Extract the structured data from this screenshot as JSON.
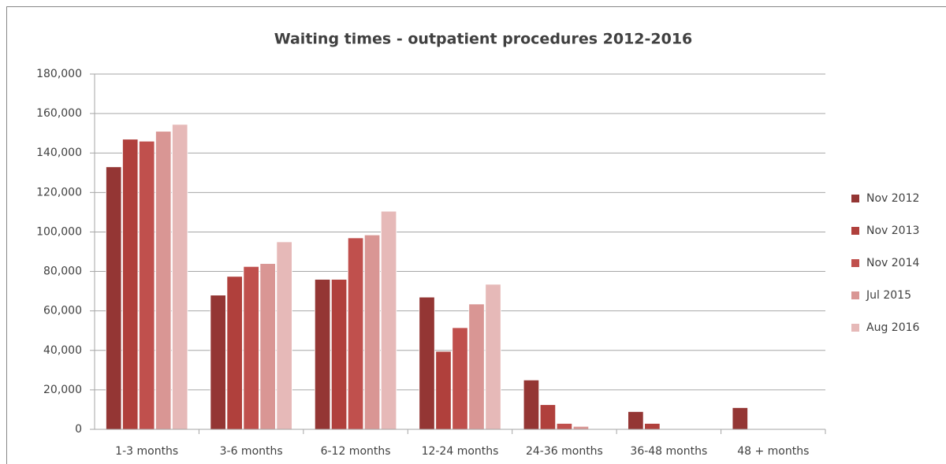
{
  "chart_data": {
    "type": "bar",
    "title": "Waiting times - outpatient procedures 2012-2016",
    "categories": [
      "1-3 months",
      "3-6 months",
      "6-12 months",
      "12-24 months",
      "24-36 months",
      "36-48 months",
      "48 + months"
    ],
    "series": [
      {
        "name": "Nov 2012",
        "color": "#943634",
        "values": [
          133000,
          68000,
          76000,
          67000,
          25000,
          9000,
          11000
        ]
      },
      {
        "name": "Nov 2013",
        "color": "#b0403c",
        "values": [
          147000,
          77500,
          76000,
          39500,
          12500,
          3000,
          0
        ]
      },
      {
        "name": "Nov 2014",
        "color": "#c0504d",
        "values": [
          146000,
          82500,
          97000,
          51500,
          3000,
          0,
          0
        ]
      },
      {
        "name": "Jul 2015",
        "color": "#d99694",
        "values": [
          151000,
          84000,
          98500,
          63500,
          1500,
          0,
          0
        ]
      },
      {
        "name": "Aug 2016",
        "color": "#e6b9b8",
        "values": [
          154500,
          95000,
          110500,
          73500,
          0,
          0,
          0
        ]
      }
    ],
    "ylim": [
      0,
      180000
    ],
    "yticks": [
      0,
      {
        "value": 20000,
        "label": "20,000"
      },
      {
        "value": 40000,
        "label": "40,000"
      },
      {
        "value": 60000,
        "label": "60,000"
      },
      {
        "value": 80000,
        "label": "80,000"
      },
      {
        "value": 100000,
        "label": "100,000"
      },
      {
        "value": 120000,
        "label": "120,000"
      },
      {
        "value": 140000,
        "label": "140,000"
      },
      {
        "value": 160000,
        "label": "160,000"
      },
      {
        "value": 180000,
        "label": "180,000"
      }
    ],
    "grid": true,
    "legend": "right"
  }
}
